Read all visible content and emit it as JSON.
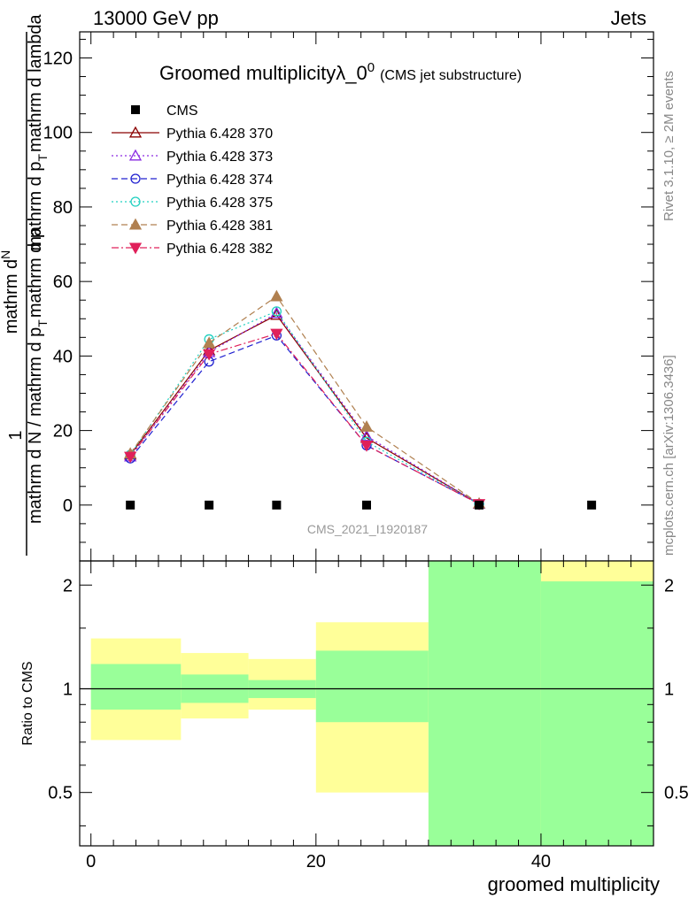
{
  "header": {
    "left": "13000 GeV pp",
    "right": "Jets"
  },
  "side_labels": {
    "rivet": "Rivet 3.1.10, ≥ 2M events",
    "mcplots": "mcplots.cern.ch [arXiv:1306.3436]"
  },
  "chart_data": {
    "type": "line",
    "title": "Groomed multiplicityλ_0",
    "title_sup": "0",
    "title_suffix": "(CMS jet substructure)",
    "watermark": "CMS_2021_I1920187",
    "ylabel_top": "1",
    "ylabel_fraction_num": "mathrm d",
    "ylabel_fraction_num2": "N",
    "ylabel_den_part1": "mathrm d p",
    "ylabel_den_sub1": "T",
    "ylabel_den_part2": "mathrm d lambda",
    "ylabel_bottom": "mathrm d N / mathrm d p",
    "ylabel_bottom_sub": "T",
    "ylabel_bottom2": "mathrm d p",
    "xlabel": "groomed multiplicity",
    "ratio_ylabel": "Ratio to CMS",
    "xlim": [
      -1,
      50
    ],
    "ylim": [
      -15,
      127
    ],
    "ratio_ylim": [
      0.35,
      2.35
    ],
    "x_ticks": [
      0,
      20,
      40
    ],
    "y_ticks": [
      0,
      20,
      40,
      60,
      80,
      100,
      120
    ],
    "ratio_ticks": [
      "0.5",
      "1",
      "2"
    ],
    "ratio_tick_values": [
      0.5,
      1,
      2
    ],
    "legend_position": "top-left",
    "data": {
      "name": "CMS",
      "x": [
        3.5,
        10.5,
        16.5,
        24.5,
        34.5,
        44.5
      ],
      "y": [
        0,
        0,
        0,
        0,
        0,
        0
      ]
    },
    "series": [
      {
        "name": "Pythia 6.428 370",
        "color": "#8b0000",
        "dash": "",
        "marker": "tri-open",
        "x": [
          3.5,
          10.5,
          16.5,
          24.5,
          34.5
        ],
        "y": [
          13.5,
          41.5,
          51,
          18,
          0.3
        ]
      },
      {
        "name": "Pythia 6.428 373",
        "color": "#8a2be2",
        "dash": "2,3",
        "marker": "tri-open",
        "x": [
          3.5,
          10.5,
          16.5,
          24.5,
          34.5
        ],
        "y": [
          13,
          41,
          51.5,
          18.5,
          0.3
        ]
      },
      {
        "name": "Pythia 6.428 374",
        "color": "#2020d0",
        "dash": "7,4",
        "marker": "circle-open",
        "x": [
          3.5,
          10.5,
          16.5,
          24.5,
          34.5
        ],
        "y": [
          12.5,
          38.5,
          45.5,
          16,
          0.3
        ]
      },
      {
        "name": "Pythia 6.428 375",
        "color": "#20d0c0",
        "dash": "2,3",
        "marker": "circle-open",
        "x": [
          3.5,
          10.5,
          16.5,
          24.5,
          34.5
        ],
        "y": [
          13.5,
          44.5,
          52,
          17,
          0.3
        ]
      },
      {
        "name": "Pythia 6.428 381",
        "color": "#b08050",
        "dash": "7,4",
        "marker": "tri-filled",
        "x": [
          3.5,
          10.5,
          16.5,
          24.5,
          34.5
        ],
        "y": [
          13.8,
          43.5,
          56,
          21,
          0.4
        ]
      },
      {
        "name": "Pythia 6.428 382",
        "color": "#e0205a",
        "dash": "8,3,2,3",
        "marker": "tri-down-filled",
        "x": [
          3.5,
          10.5,
          16.5,
          24.5,
          34.5
        ],
        "y": [
          13,
          40.5,
          46,
          16,
          0.3
        ]
      }
    ],
    "ratio_bands": [
      {
        "x0": 0,
        "x1": 8,
        "green_lo": 0.87,
        "green_hi": 1.18,
        "yellow_lo": 0.71,
        "yellow_hi": 1.4
      },
      {
        "x0": 8,
        "x1": 14,
        "green_lo": 0.91,
        "green_hi": 1.1,
        "yellow_lo": 0.82,
        "yellow_hi": 1.27
      },
      {
        "x0": 14,
        "x1": 20,
        "green_lo": 0.94,
        "green_hi": 1.06,
        "yellow_lo": 0.87,
        "yellow_hi": 1.22
      },
      {
        "x0": 20,
        "x1": 30,
        "green_lo": 0.8,
        "green_hi": 1.29,
        "yellow_lo": 0.5,
        "yellow_hi": 1.56
      },
      {
        "x0": 30,
        "x1": 40,
        "green_lo": 0.35,
        "green_hi": 2.35,
        "yellow_lo": 0.35,
        "yellow_hi": 2.35
      },
      {
        "x0": 40,
        "x1": 50,
        "green_lo": 0.35,
        "green_hi": 2.05,
        "yellow_lo": 0.35,
        "yellow_hi": 2.35
      }
    ]
  }
}
